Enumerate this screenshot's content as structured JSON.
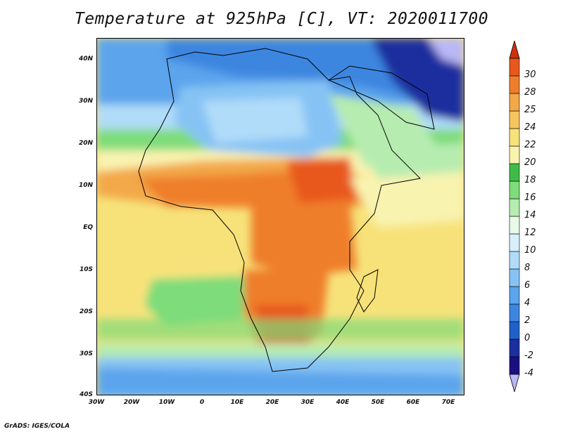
{
  "title": "Temperature at 925hPa [C], VT: 2020011700",
  "footer": "GrADS: IGES/COLA",
  "axes": {
    "lat_labels": [
      "40N",
      "30N",
      "20N",
      "10N",
      "EQ",
      "10S",
      "20S",
      "30S",
      "40S"
    ],
    "lon_labels": [
      "30W",
      "20W",
      "10W",
      "0",
      "10E",
      "20E",
      "30E",
      "40E",
      "50E",
      "60E",
      "70E"
    ],
    "lon_range": [
      -30,
      75
    ],
    "lat_range": [
      -40,
      45
    ]
  },
  "colorbar": {
    "labels": [
      "-4",
      "-2",
      "0",
      "2",
      "4",
      "6",
      "8",
      "10",
      "12",
      "14",
      "16",
      "18",
      "20",
      "22",
      "24",
      "25",
      "28",
      "30"
    ],
    "colors": [
      "#b9b7f5",
      "#1a1080",
      "#1b2f9e",
      "#2060c8",
      "#3d86e0",
      "#5ca4ec",
      "#86c3f4",
      "#b0dcf9",
      "#d7f0fb",
      "#e9f9e7",
      "#b6ecb0",
      "#7edc7a",
      "#3fbc47",
      "#f9f3b0",
      "#f7e27a",
      "#f5c65e",
      "#f3a84a",
      "#ef7e2c",
      "#e8581c",
      "#d1300e"
    ]
  },
  "map": {
    "legend_note": "Filled contours of 925hPa temperature over Africa and surrounding oceans"
  }
}
